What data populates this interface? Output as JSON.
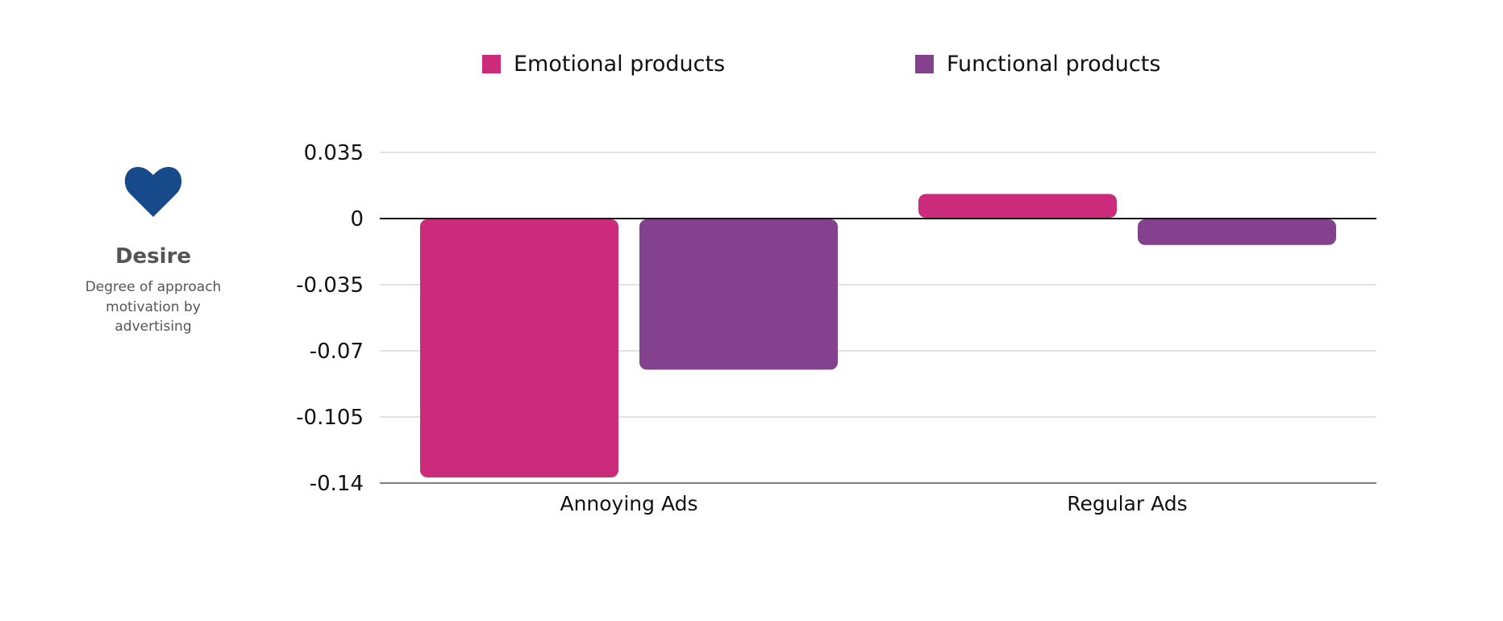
{
  "side_label": {
    "icon": "heart-icon",
    "icon_color": "#164A8A",
    "title": "Desire",
    "subtitle": "Degree of approach motivation by advertising"
  },
  "chart_data": {
    "type": "bar",
    "categories": [
      "Annoying Ads",
      "Regular Ads"
    ],
    "series": [
      {
        "name": "Emotional products",
        "color": "#CC2A7B",
        "values": [
          -0.137,
          0.013
        ]
      },
      {
        "name": "Functional products",
        "color": "#84418E",
        "values": [
          -0.08,
          -0.014
        ]
      }
    ],
    "yticks": [
      "0.035",
      "0",
      "-0.035",
      "-0.07",
      "-0.105",
      "-0.14"
    ],
    "ylim": [
      -0.14,
      0.035
    ],
    "grid": true,
    "legend": "top",
    "title": "",
    "xlabel": "",
    "ylabel": ""
  }
}
